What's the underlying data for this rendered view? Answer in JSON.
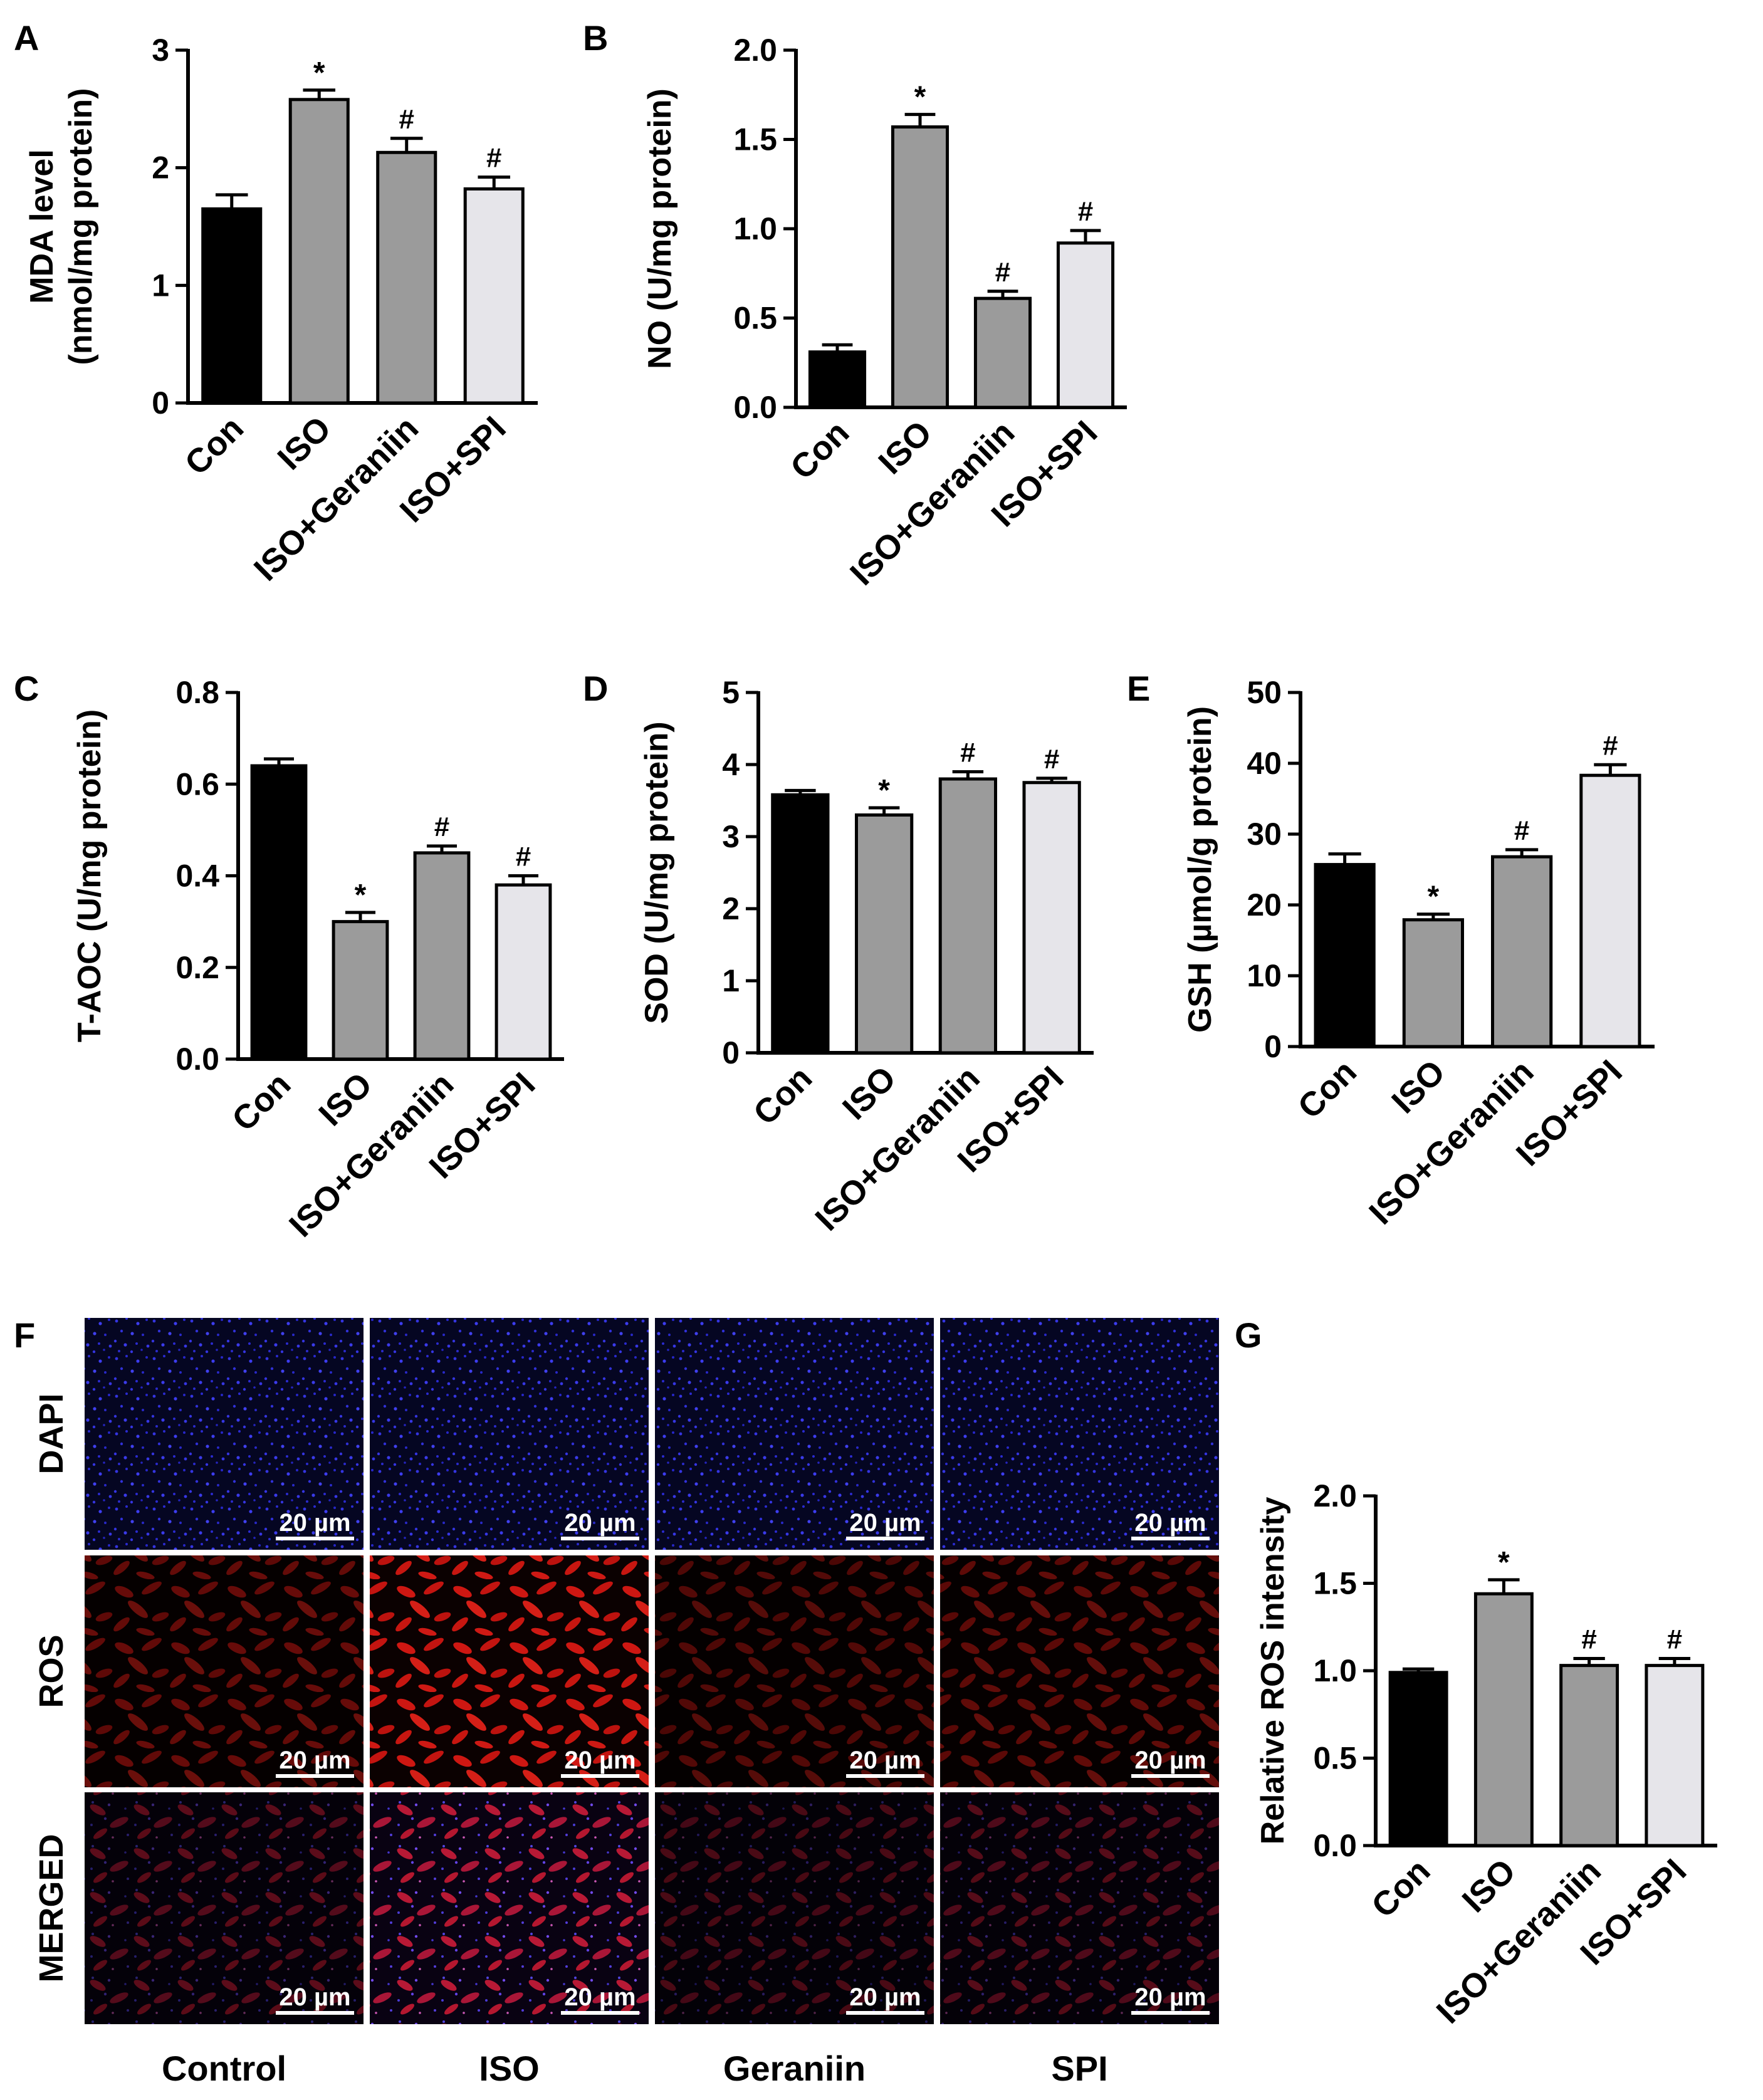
{
  "figure": {
    "scale_bar_label": "20 µm",
    "colors": {
      "bar_fills": [
        "#000000",
        "#9b9b9b",
        "#9b9b9b",
        "#e6e5ea"
      ],
      "dapi_background": "#050622",
      "dapi_nuclei": "#2a2ad8",
      "ros_signal": "#c81212",
      "merged_signal": "#a0205a"
    }
  },
  "chart_data": [
    {
      "panel": "A",
      "type": "bar",
      "ylabel_lines": [
        "MDA level",
        "(nmol/mg protein)"
      ],
      "categories": [
        "Con",
        "ISO",
        "ISO+Geraniin",
        "ISO+SPI"
      ],
      "values": [
        1.65,
        2.58,
        2.13,
        1.82
      ],
      "errors": [
        0.12,
        0.08,
        0.12,
        0.1
      ],
      "annotations": [
        "",
        "*",
        "#",
        "#"
      ],
      "ylim": [
        0,
        3
      ],
      "yticks": [
        0,
        1,
        2,
        3
      ],
      "ytick_labels": [
        "0",
        "1",
        "2",
        "3"
      ]
    },
    {
      "panel": "B",
      "type": "bar",
      "ylabel_lines": [
        "NO (U/mg protein)"
      ],
      "categories": [
        "Con",
        "ISO",
        "ISO+Geraniin",
        "ISO+SPI"
      ],
      "values": [
        0.31,
        1.57,
        0.61,
        0.92
      ],
      "errors": [
        0.04,
        0.07,
        0.04,
        0.07
      ],
      "annotations": [
        "",
        "*",
        "#",
        "#"
      ],
      "ylim": [
        0,
        2.0
      ],
      "yticks": [
        0,
        0.5,
        1.0,
        1.5,
        2.0
      ],
      "ytick_labels": [
        "0.0",
        "0.5",
        "1.0",
        "1.5",
        "2.0"
      ]
    },
    {
      "panel": "C",
      "type": "bar",
      "ylabel_lines": [
        "T-AOC (U/mg protein)"
      ],
      "categories": [
        "Con",
        "ISO",
        "ISO+Geraniin",
        "ISO+SPI"
      ],
      "values": [
        0.64,
        0.3,
        0.45,
        0.38
      ],
      "errors": [
        0.015,
        0.02,
        0.015,
        0.02
      ],
      "annotations": [
        "",
        "*",
        "#",
        "#"
      ],
      "ylim": [
        0,
        0.8
      ],
      "yticks": [
        0,
        0.2,
        0.4,
        0.6,
        0.8
      ],
      "ytick_labels": [
        "0.0",
        "0.2",
        "0.4",
        "0.6",
        "0.8"
      ]
    },
    {
      "panel": "D",
      "type": "bar",
      "ylabel_lines": [
        "SOD (U/mg protein)"
      ],
      "categories": [
        "Con",
        "ISO",
        "ISO+Geraniin",
        "ISO+SPI"
      ],
      "values": [
        3.58,
        3.3,
        3.8,
        3.75
      ],
      "errors": [
        0.06,
        0.1,
        0.1,
        0.06
      ],
      "annotations": [
        "",
        "*",
        "#",
        "#"
      ],
      "ylim": [
        0,
        5
      ],
      "yticks": [
        0,
        1,
        2,
        3,
        4,
        5
      ],
      "ytick_labels": [
        "0",
        "1",
        "2",
        "3",
        "4",
        "5"
      ]
    },
    {
      "panel": "E",
      "type": "bar",
      "ylabel_lines": [
        "GSH (µmol/g protein)"
      ],
      "categories": [
        "Con",
        "ISO",
        "ISO+Geraniin",
        "ISO+SPI"
      ],
      "values": [
        25.7,
        17.9,
        26.8,
        38.3
      ],
      "errors": [
        1.5,
        0.8,
        1.0,
        1.5
      ],
      "annotations": [
        "",
        "*",
        "#",
        "#"
      ],
      "ylim": [
        0,
        50
      ],
      "yticks": [
        0,
        10,
        20,
        30,
        40,
        50
      ],
      "ytick_labels": [
        "0",
        "10",
        "20",
        "30",
        "40",
        "50"
      ]
    },
    {
      "panel": "G",
      "type": "bar",
      "ylabel_lines": [
        "Relative ROS intensity"
      ],
      "categories": [
        "Con",
        "ISO",
        "ISO+Geraniin",
        "ISO+SPI"
      ],
      "values": [
        0.99,
        1.44,
        1.03,
        1.03
      ],
      "errors": [
        0.02,
        0.08,
        0.04,
        0.04
      ],
      "annotations": [
        "",
        "*",
        "#",
        "#"
      ],
      "ylim": [
        0,
        2.0
      ],
      "yticks": [
        0,
        0.5,
        1.0,
        1.5,
        2.0
      ],
      "ytick_labels": [
        "0.0",
        "0.5",
        "1.0",
        "1.5",
        "2.0"
      ]
    }
  ],
  "micrographs": {
    "panel": "F",
    "rows": [
      "DAPI",
      "ROS",
      "MERGED"
    ],
    "columns": [
      "Control",
      "ISO",
      "Geraniin",
      "SPI"
    ],
    "ros_relative_intensity": [
      0.35,
      1.0,
      0.22,
      0.3
    ]
  }
}
